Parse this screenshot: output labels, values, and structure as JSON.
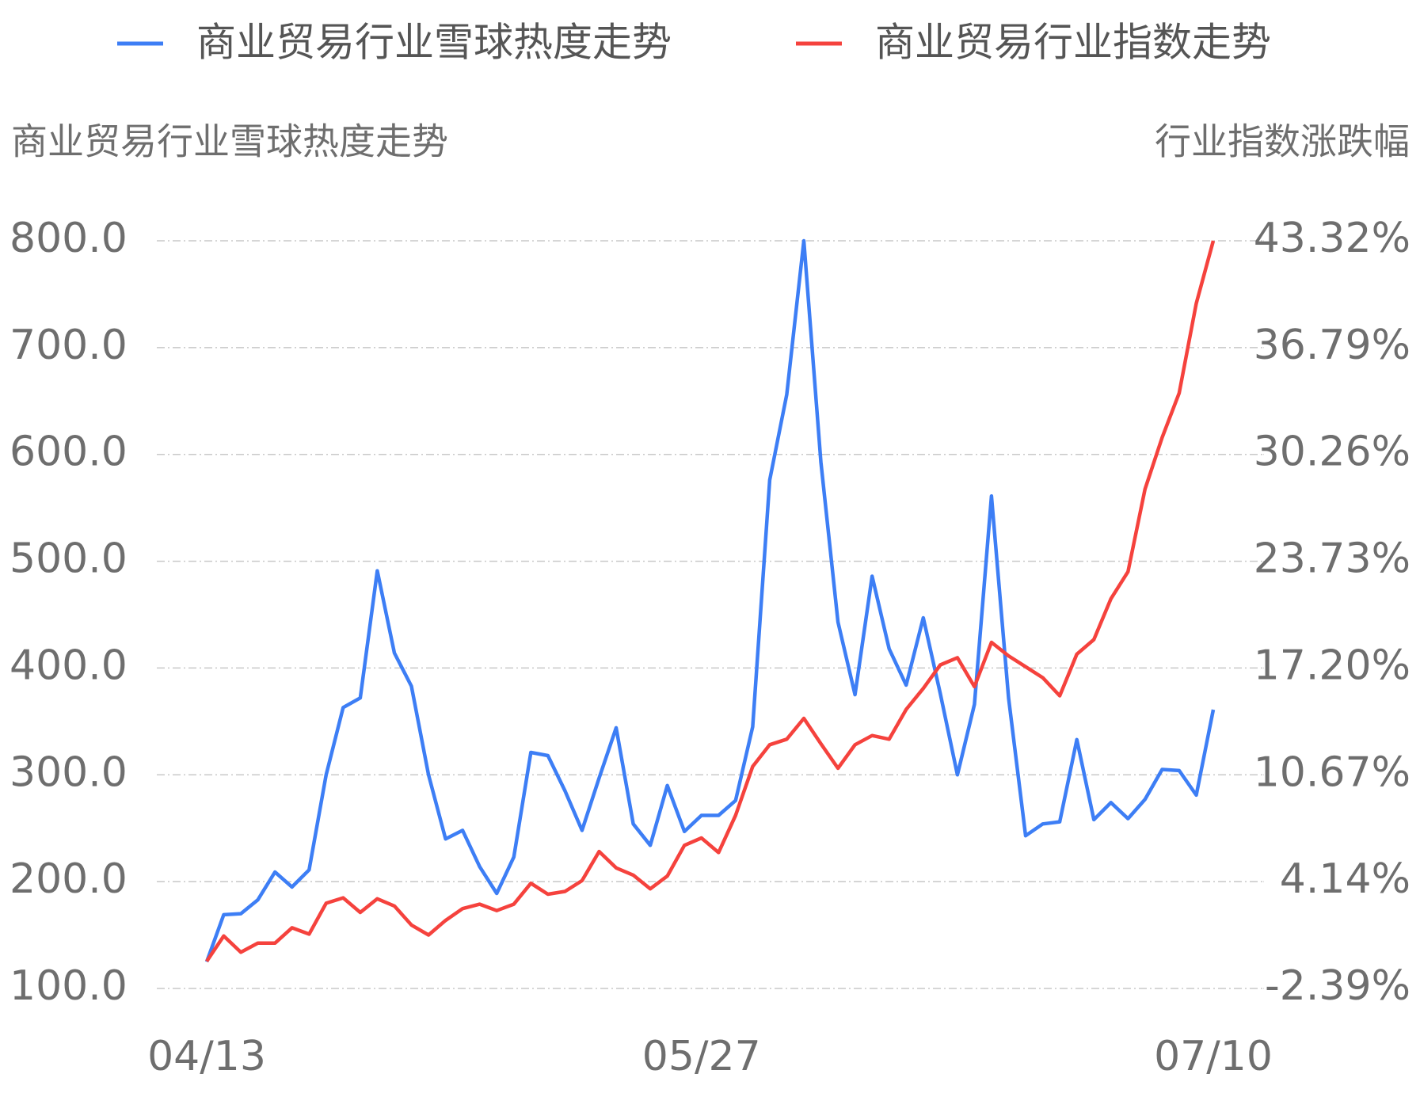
{
  "chart_data": {
    "type": "line",
    "legend_position": "top",
    "y_label": "商业贸易行业雪球热度走势",
    "y2_label": "行业指数涨跌幅",
    "categories": [
      "04/13",
      null,
      null,
      null,
      null,
      null,
      null,
      null,
      null,
      null,
      null,
      null,
      null,
      null,
      null,
      null,
      null,
      null,
      null,
      null,
      null,
      null,
      null,
      null,
      null,
      null,
      null,
      null,
      null,
      "05/27",
      null,
      null,
      null,
      null,
      null,
      null,
      null,
      null,
      null,
      null,
      null,
      null,
      null,
      null,
      null,
      null,
      null,
      null,
      null,
      null,
      null,
      null,
      null,
      null,
      null,
      null,
      null,
      null,
      null,
      "07/10"
    ],
    "series": [
      {
        "name": "商业贸易行业雪球热度走势",
        "color": "#3d7ef5",
        "axis": "y",
        "values": [
          125,
          169,
          170,
          183,
          209,
          195,
          211,
          300,
          363,
          372,
          491,
          414,
          383,
          300,
          240,
          248,
          214,
          189,
          223,
          321,
          318,
          285,
          248,
          297,
          344,
          254,
          234,
          290,
          247,
          262,
          262,
          276,
          345,
          576,
          656,
          800,
          593,
          443,
          375,
          486,
          418,
          384,
          447,
          376,
          300,
          366,
          561,
          372,
          243,
          254,
          256,
          333,
          258,
          274,
          259,
          277,
          305,
          304,
          281,
          361
        ]
      },
      {
        "name": "商业贸易行业指数走势",
        "color": "#f5423d",
        "axis": "y2",
        "values": [
          -0.73,
          0.82,
          -0.17,
          0.38,
          0.38,
          1.32,
          0.93,
          2.82,
          3.15,
          2.26,
          3.09,
          2.65,
          1.49,
          0.88,
          1.77,
          2.49,
          2.76,
          2.37,
          2.76,
          4.04,
          3.37,
          3.54,
          4.2,
          5.98,
          4.98,
          4.54,
          3.7,
          4.48,
          6.36,
          6.81,
          5.92,
          8.19,
          11.18,
          12.51,
          12.85,
          14.12,
          12.57,
          11.07,
          12.51,
          13.07,
          12.85,
          14.67,
          15.95,
          17.39,
          17.83,
          16.06,
          18.77,
          17.94,
          17.28,
          16.61,
          15.5,
          18.05,
          18.94,
          21.43,
          23.09,
          28.14,
          31.29,
          34.01,
          39.49,
          43.32
        ]
      }
    ],
    "ylim": [
      100,
      800
    ],
    "yticks": [
      {
        "value": 100,
        "label": "100.0"
      },
      {
        "value": 200,
        "label": "200.0"
      },
      {
        "value": 300,
        "label": "300.0"
      },
      {
        "value": 400,
        "label": "400.0"
      },
      {
        "value": 500,
        "label": "500.0"
      },
      {
        "value": 600,
        "label": "600.0"
      },
      {
        "value": 700,
        "label": "700.0"
      },
      {
        "value": 800,
        "label": "800.0"
      }
    ],
    "y2lim": [
      -2.39,
      43.32
    ],
    "y2ticks": [
      {
        "value": -2.39,
        "label": "-2.39%"
      },
      {
        "value": 4.14,
        "label": "4.14%"
      },
      {
        "value": 10.67,
        "label": "10.67%"
      },
      {
        "value": 17.2,
        "label": "17.20%"
      },
      {
        "value": 23.73,
        "label": "23.73%"
      },
      {
        "value": 30.26,
        "label": "30.26%"
      },
      {
        "value": 36.79,
        "label": "36.79%"
      },
      {
        "value": 43.32,
        "label": "43.32%"
      }
    ],
    "grid": true
  }
}
